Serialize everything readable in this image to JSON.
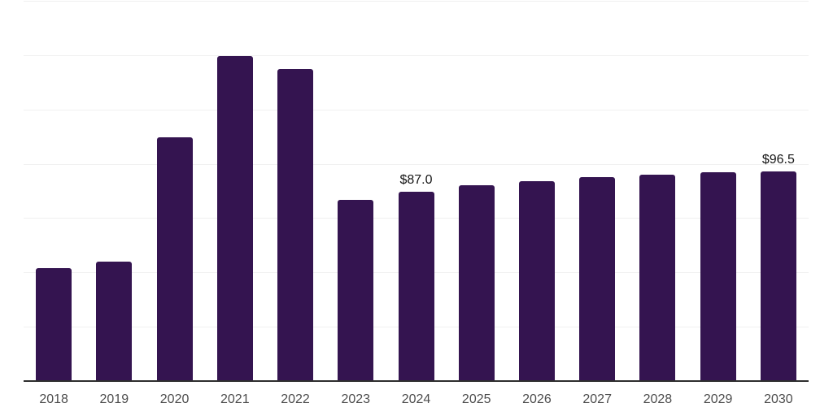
{
  "chart_data": {
    "type": "bar",
    "title": "",
    "xlabel": "",
    "ylabel": "",
    "categories": [
      "2018",
      "2019",
      "2020",
      "2021",
      "2022",
      "2023",
      "2024",
      "2025",
      "2026",
      "2027",
      "2028",
      "2029",
      "2030"
    ],
    "values": [
      52,
      55,
      112,
      149.5,
      143.5,
      83.5,
      87.0,
      90,
      92,
      94,
      95,
      96,
      96.5
    ],
    "data_labels": {
      "2024": "$87.0",
      "2030": "$96.5"
    },
    "ylim": [
      0,
      175
    ],
    "grid_step": 25,
    "grid": true,
    "legend": false,
    "y_axis_labels_visible": false,
    "colors": {
      "bar": "#341450",
      "gridline": "#f0f0f0",
      "axis_line": "#2e2e2e",
      "tick_label": "#4d4d4d",
      "data_label": "#151515",
      "background": "#ffffff"
    }
  }
}
